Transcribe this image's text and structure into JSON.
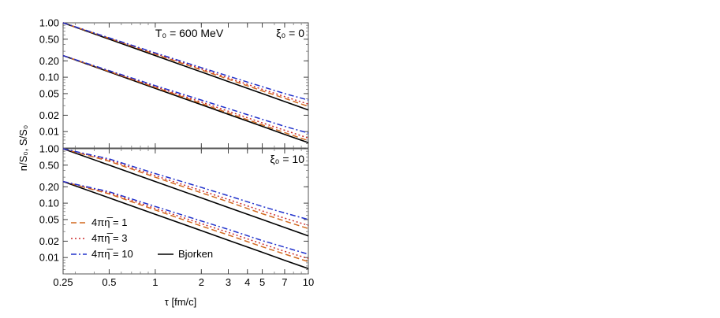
{
  "figure": {
    "ylabel": "n/S₀, S/S₀",
    "xlabel": "τ [fm/c]"
  },
  "chart_data": [
    {
      "type": "line",
      "panel": "top",
      "annotations": [
        "T₀ = 600 MeV",
        "ξ₀ = 0"
      ],
      "xscale": "log",
      "yscale": "log",
      "xlim": [
        0.25,
        10
      ],
      "ylim": [
        0.005,
        1.0
      ],
      "x_ticks": [
        "0.25",
        "0.5",
        "1",
        "2",
        "3",
        "4",
        "5",
        "7",
        "10"
      ],
      "y_ticks": [
        "1.00",
        "0.50",
        "0.20",
        "0.10",
        "0.05",
        "0.02",
        "0.01"
      ],
      "x": [
        0.25,
        0.5,
        1,
        2,
        3,
        5,
        7,
        10
      ],
      "series": [
        {
          "name": "4πη̅ = 1",
          "group": "S/S0",
          "color": "#d2691e",
          "dash": "dashed",
          "values": [
            1.0,
            0.52,
            0.265,
            0.136,
            0.092,
            0.056,
            0.041,
            0.029
          ]
        },
        {
          "name": "4πη̅ = 3",
          "group": "S/S0",
          "color": "#cc2a2a",
          "dash": "dotted",
          "values": [
            1.0,
            0.525,
            0.272,
            0.142,
            0.097,
            0.06,
            0.044,
            0.032
          ]
        },
        {
          "name": "4πη̅ = 10",
          "group": "S/S0",
          "color": "#2233cc",
          "dash": "dashdot",
          "values": [
            1.0,
            0.53,
            0.28,
            0.15,
            0.105,
            0.067,
            0.05,
            0.038
          ]
        },
        {
          "name": "Bjorken",
          "group": "S/S0",
          "color": "#000000",
          "dash": "solid",
          "values": [
            1.0,
            0.5,
            0.25,
            0.125,
            0.0833,
            0.05,
            0.0357,
            0.025
          ]
        },
        {
          "name": "4πη̅ = 1",
          "group": "n/S0",
          "color": "#d2691e",
          "dash": "dashed",
          "values": [
            0.25,
            0.128,
            0.065,
            0.033,
            0.022,
            0.0133,
            0.0096,
            0.0068
          ]
        },
        {
          "name": "4πη̅ = 3",
          "group": "n/S0",
          "color": "#cc2a2a",
          "dash": "dotted",
          "values": [
            0.25,
            0.13,
            0.067,
            0.035,
            0.0237,
            0.0145,
            0.0106,
            0.0076
          ]
        },
        {
          "name": "4πη̅ = 10",
          "group": "n/S0",
          "color": "#2233cc",
          "dash": "dashdot",
          "values": [
            0.25,
            0.132,
            0.07,
            0.038,
            0.0265,
            0.0168,
            0.0125,
            0.0094
          ]
        },
        {
          "name": "Bjorken",
          "group": "n/S0",
          "color": "#000000",
          "dash": "solid",
          "values": [
            0.25,
            0.125,
            0.0625,
            0.03125,
            0.0208,
            0.0125,
            0.0089,
            0.00625
          ]
        }
      ]
    },
    {
      "type": "line",
      "panel": "bottom",
      "annotations": [
        "ξ₀ = 10"
      ],
      "xscale": "log",
      "yscale": "log",
      "xlim": [
        0.25,
        10
      ],
      "ylim": [
        0.005,
        1.0
      ],
      "x_ticks": [
        "0.25",
        "0.5",
        "1",
        "2",
        "3",
        "4",
        "5",
        "7",
        "10"
      ],
      "y_ticks": [
        "1.00",
        "0.50",
        "0.20",
        "0.10",
        "0.05",
        "0.02",
        "0.01"
      ],
      "legend": {
        "placement": "bottom-left",
        "entries": [
          "4πη̅ = 1",
          "4πη̅ = 3",
          "4πη̅ = 10",
          "Bjorken"
        ]
      },
      "x": [
        0.25,
        0.5,
        1,
        2,
        3,
        5,
        7,
        10
      ],
      "series": [
        {
          "name": "4πη̅ = 1",
          "group": "S/S0",
          "color": "#d2691e",
          "dash": "dashed",
          "values": [
            1.0,
            0.59,
            0.3,
            0.155,
            0.106,
            0.064,
            0.047,
            0.034
          ]
        },
        {
          "name": "4πη̅ = 3",
          "group": "S/S0",
          "color": "#cc2a2a",
          "dash": "dotted",
          "values": [
            1.0,
            0.62,
            0.32,
            0.17,
            0.117,
            0.072,
            0.053,
            0.039
          ]
        },
        {
          "name": "4πη̅ = 10",
          "group": "S/S0",
          "color": "#2233cc",
          "dash": "dashdot",
          "values": [
            1.0,
            0.65,
            0.35,
            0.195,
            0.137,
            0.087,
            0.066,
            0.05
          ]
        },
        {
          "name": "Bjorken",
          "group": "S/S0",
          "color": "#000000",
          "dash": "solid",
          "values": [
            1.0,
            0.5,
            0.25,
            0.125,
            0.0833,
            0.05,
            0.0357,
            0.025
          ]
        },
        {
          "name": "4πη̅ = 1",
          "group": "n/S0",
          "color": "#d2691e",
          "dash": "dashed",
          "values": [
            0.25,
            0.148,
            0.075,
            0.038,
            0.026,
            0.0158,
            0.0116,
            0.0084
          ]
        },
        {
          "name": "4πη̅ = 3",
          "group": "n/S0",
          "color": "#cc2a2a",
          "dash": "dotted",
          "values": [
            0.25,
            0.155,
            0.08,
            0.042,
            0.029,
            0.0178,
            0.013,
            0.0096
          ]
        },
        {
          "name": "4πη̅ = 10",
          "group": "n/S0",
          "color": "#2233cc",
          "dash": "dashdot",
          "values": [
            0.25,
            0.162,
            0.087,
            0.047,
            0.033,
            0.0205,
            0.0155,
            0.0115
          ]
        },
        {
          "name": "Bjorken",
          "group": "n/S0",
          "color": "#000000",
          "dash": "solid",
          "values": [
            0.25,
            0.125,
            0.0625,
            0.03125,
            0.0208,
            0.0125,
            0.0089,
            0.00625
          ]
        }
      ]
    }
  ]
}
